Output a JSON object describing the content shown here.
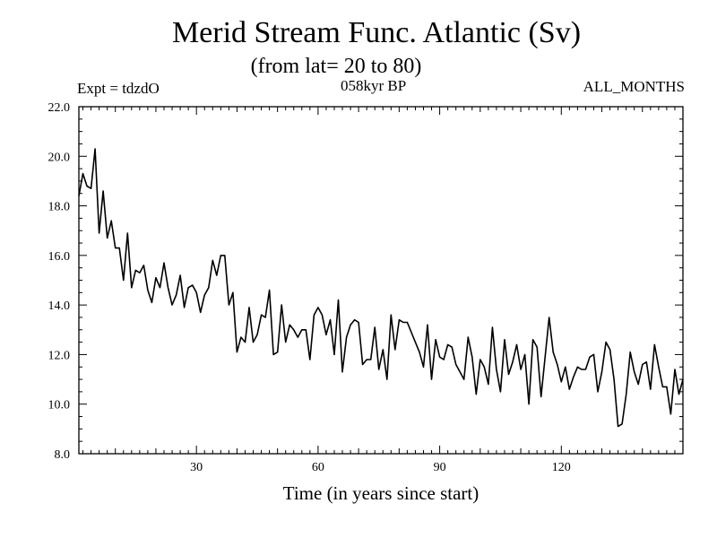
{
  "chart_data": {
    "type": "line",
    "title": "Merid Stream Func. Atlantic (Sv)",
    "subtitle": "(from lat= 20 to 80)",
    "annotations": {
      "experiment": "Expt = tdzdO",
      "period": "058kyr BP",
      "months": "ALL_MONTHS"
    },
    "xlabel": "Time (in years since start)",
    "ylabel": "",
    "xlim": [
      1,
      150
    ],
    "ylim": [
      8,
      22
    ],
    "x_ticks": [
      30,
      60,
      90,
      120
    ],
    "x_tick_labels": [
      "30",
      "60",
      "90",
      "120"
    ],
    "y_ticks": [
      8,
      10,
      12,
      14,
      16,
      18,
      20,
      22
    ],
    "y_tick_labels": [
      "8.0",
      "10.0",
      "12.0",
      "14.0",
      "16.0",
      "18.0",
      "20.0",
      "22.0"
    ],
    "grid": false,
    "series": [
      {
        "name": "Merid Stream Func. Atlantic",
        "color": "#000000",
        "x_start": 1,
        "x_step": 1,
        "values": [
          18.4,
          19.3,
          18.8,
          18.7,
          20.3,
          16.9,
          18.6,
          16.7,
          17.4,
          16.3,
          16.3,
          15.0,
          16.9,
          14.7,
          15.4,
          15.3,
          15.6,
          14.6,
          14.1,
          15.1,
          14.7,
          15.7,
          14.7,
          14.0,
          14.4,
          15.2,
          13.9,
          14.7,
          14.8,
          14.5,
          13.7,
          14.4,
          14.7,
          15.8,
          15.2,
          16.0,
          16.0,
          14.0,
          14.5,
          12.1,
          12.7,
          12.5,
          13.9,
          12.5,
          12.8,
          13.6,
          13.5,
          14.6,
          12.0,
          12.1,
          14.0,
          12.5,
          13.2,
          13.0,
          12.7,
          13.0,
          13.0,
          11.8,
          13.6,
          13.9,
          13.6,
          12.8,
          13.4,
          12.0,
          14.2,
          11.3,
          12.7,
          13.2,
          13.4,
          13.3,
          11.6,
          11.8,
          11.8,
          13.1,
          11.4,
          12.2,
          11.0,
          13.6,
          12.2,
          13.4,
          13.3,
          13.3,
          12.9,
          12.5,
          12.1,
          11.5,
          13.2,
          11.0,
          12.6,
          11.9,
          11.8,
          12.4,
          12.3,
          11.6,
          11.3,
          11.0,
          12.7,
          11.9,
          10.4,
          11.8,
          11.5,
          10.8,
          13.1,
          11.4,
          10.5,
          12.6,
          11.2,
          11.7,
          12.4,
          11.4,
          12.0,
          10.0,
          12.6,
          12.3,
          10.3,
          11.9,
          13.5,
          12.1,
          11.6,
          10.9,
          11.5,
          10.6,
          11.1,
          11.5,
          11.4,
          11.4,
          11.9,
          12.0,
          10.5,
          11.3,
          12.5,
          12.2,
          11.0,
          9.1,
          9.2,
          10.4,
          12.1,
          11.3,
          10.8,
          11.6,
          11.7,
          10.6,
          12.4,
          11.5,
          10.7,
          10.7,
          9.6,
          11.4,
          10.4,
          11.0
        ]
      }
    ]
  }
}
